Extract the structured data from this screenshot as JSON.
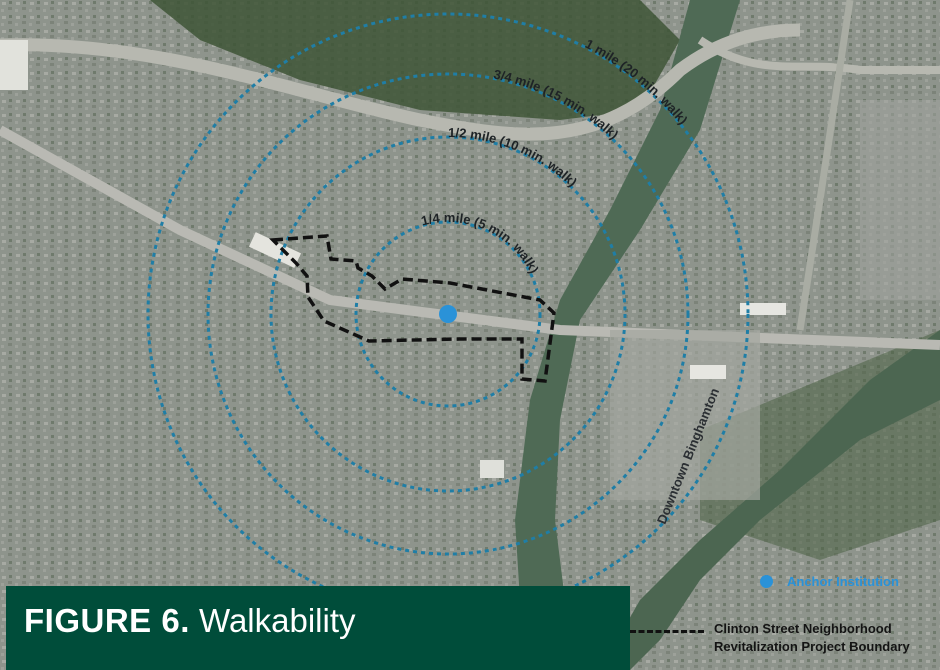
{
  "figure": {
    "number": "FIGURE 6.",
    "title": "Walkability"
  },
  "map": {
    "rings": [
      {
        "label": "1/4 mile (5 min. walk)",
        "distance_mi": 0.25,
        "walk_min": 5
      },
      {
        "label": "1/2 mile (10 min. walk)",
        "distance_mi": 0.5,
        "walk_min": 10
      },
      {
        "label": "3/4 mile (15 min. walk)",
        "distance_mi": 0.75,
        "walk_min": 15
      },
      {
        "label": "1 mile (20 min. walk)",
        "distance_mi": 1,
        "walk_min": 20
      }
    ],
    "place_label": "Downtown Binghamton",
    "colors": {
      "ring": "#1f7ea6",
      "anchor": "#2a92d8",
      "boundary": "#111111",
      "title_bar": "#004d3a"
    }
  },
  "legend": {
    "anchor_label": "Anchor Institution",
    "boundary_line1": "Clinton Street Neighborhood",
    "boundary_line2": "Revitalization Project Boundary"
  }
}
